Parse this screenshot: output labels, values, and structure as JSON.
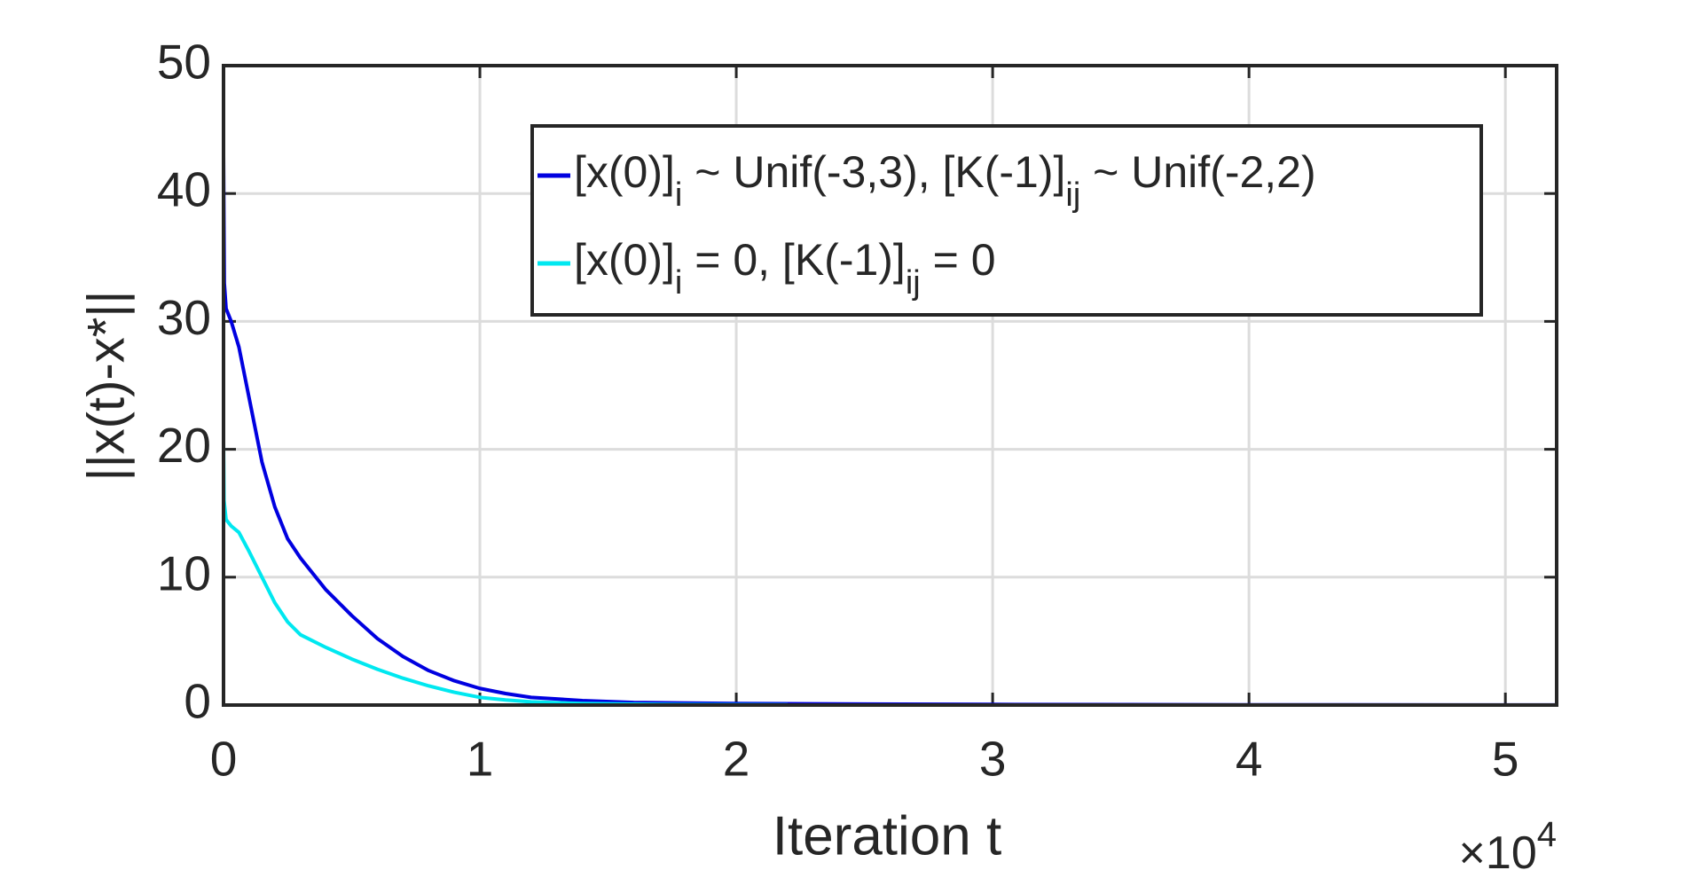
{
  "chart_data": {
    "type": "line",
    "xlabel": "Iteration t",
    "ylabel": "||x(t)-x*||",
    "x_multiplier": {
      "base": "×10",
      "exponent": "4"
    },
    "xlim": [
      0,
      52000
    ],
    "ylim": [
      0,
      50
    ],
    "xticks": [
      {
        "value": 0,
        "label": "0"
      },
      {
        "value": 10000,
        "label": "1"
      },
      {
        "value": 20000,
        "label": "2"
      },
      {
        "value": 30000,
        "label": "3"
      },
      {
        "value": 40000,
        "label": "4"
      },
      {
        "value": 50000,
        "label": "5"
      }
    ],
    "yticks": [
      0,
      10,
      20,
      30,
      40,
      50
    ],
    "grid": true,
    "legend": "north",
    "series": [
      {
        "name": [
          {
            "text": "[x(0)]"
          },
          {
            "text": "i",
            "sub": true
          },
          {
            "text": " ~ Unif(-3,3), [K(-1)]"
          },
          {
            "text": "ij",
            "sub": true
          },
          {
            "text": " ~ Unif(-2,2)"
          }
        ],
        "color": "#0000e0",
        "x": [
          0,
          30,
          100,
          300,
          600,
          1000,
          1500,
          2000,
          2500,
          3000,
          4000,
          5000,
          6000,
          7000,
          8000,
          9000,
          10000,
          11000,
          12000,
          14000,
          16000,
          20000,
          25000,
          30000,
          40000,
          52000
        ],
        "values": [
          43,
          33,
          31,
          30,
          28,
          24,
          19,
          15.5,
          13,
          11.5,
          9,
          7,
          5.2,
          3.8,
          2.7,
          1.9,
          1.3,
          0.9,
          0.6,
          0.35,
          0.2,
          0.12,
          0.08,
          0.05,
          0.02,
          0.01
        ]
      },
      {
        "name": [
          {
            "text": "[x(0)]"
          },
          {
            "text": "i",
            "sub": true
          },
          {
            "text": " = 0, [K(-1)]"
          },
          {
            "text": "ij",
            "sub": true
          },
          {
            "text": " = 0"
          }
        ],
        "color": "#00e8f0",
        "x": [
          0,
          20,
          100,
          300,
          600,
          1000,
          1500,
          2000,
          2500,
          3000,
          4000,
          5000,
          6000,
          7000,
          8000,
          9000,
          10000,
          11000,
          12000,
          14000,
          17000,
          22000
        ],
        "values": [
          20.5,
          16,
          14.5,
          14,
          13.5,
          12,
          10,
          8,
          6.5,
          5.5,
          4.5,
          3.6,
          2.8,
          2.1,
          1.5,
          1,
          0.6,
          0.4,
          0.25,
          0.12,
          0.05,
          0.02
        ]
      }
    ]
  }
}
